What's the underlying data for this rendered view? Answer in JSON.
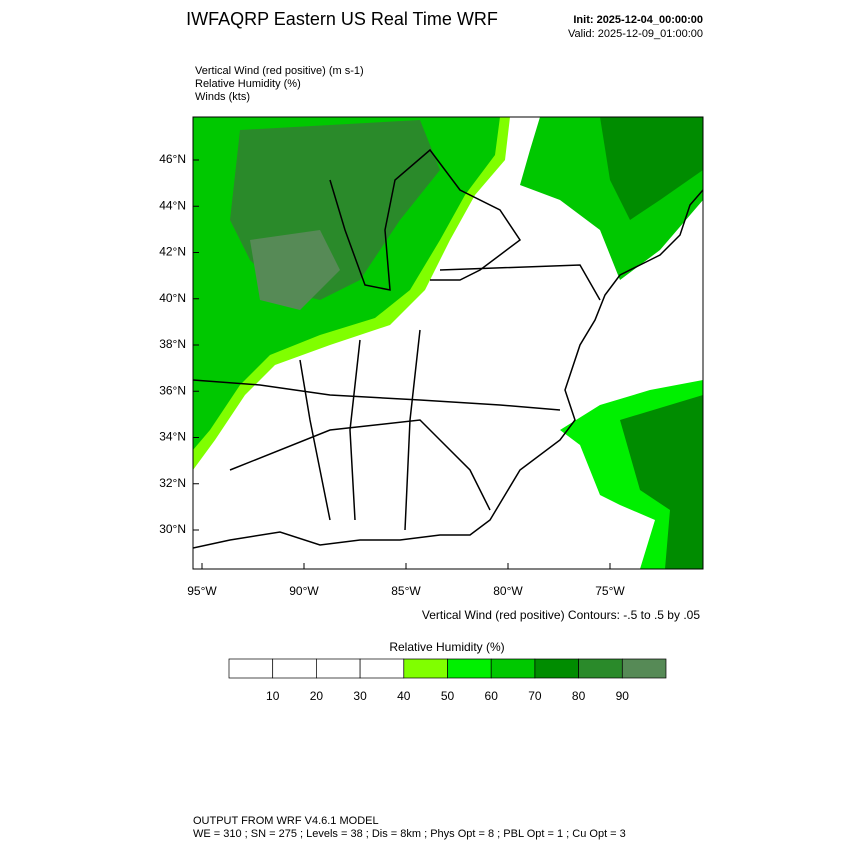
{
  "header": {
    "title": "IWFAQRP Eastern US Real Time WRF",
    "init": "Init: 2025-12-04_00:00:00",
    "valid": "Valid: 2025-12-09_01:00:00"
  },
  "fields": [
    "Vertical Wind (red positive)   (m s-1)",
    "Relative Humidity   (%)",
    "Winds   (kts)"
  ],
  "map": {
    "lat_labels": [
      "46°N",
      "44°N",
      "42°N",
      "40°N",
      "38°N",
      "36°N",
      "34°N",
      "32°N",
      "30°N"
    ],
    "lon_labels": [
      "95°W",
      "90°W",
      "85°W",
      "80°W",
      "75°W"
    ],
    "contour_note": "Vertical Wind (red positive) Contours: -.5 to .5 by .05"
  },
  "colorbar": {
    "title": "Relative Humidity  (%)",
    "labels": [
      10,
      20,
      30,
      40,
      50,
      60,
      70,
      80,
      90
    ],
    "colors": [
      "#ffffff",
      "#ffffff",
      "#ffffff",
      "#ffffff",
      "#80ff00",
      "#00f000",
      "#00c800",
      "#008c00",
      "#2a8a2a",
      "#568a56"
    ]
  },
  "footer": {
    "line1": "OUTPUT FROM WRF V4.6.1 MODEL",
    "line2": "WE = 310 ; SN = 275 ; Levels = 38 ; Dis = 8km ; Phys Opt = 8 ; PBL Opt = 1 ; Cu Opt = 3"
  }
}
